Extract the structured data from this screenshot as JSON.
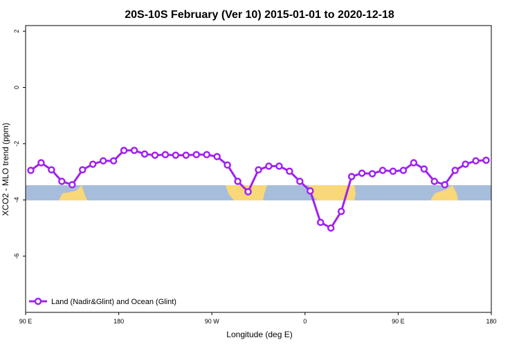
{
  "chart_data": {
    "type": "line",
    "title": "20S-10S February (Ver 10)   2015-01-01 to 2020-12-18",
    "x_label": "Longitude (deg E)",
    "y_label": "XCO2 - MLO trend (ppm)",
    "x": [
      95,
      105,
      115,
      125,
      135,
      145,
      155,
      165,
      175,
      185,
      195,
      205,
      215,
      225,
      235,
      245,
      255,
      265,
      275,
      285,
      295,
      305,
      315,
      325,
      335,
      345,
      355,
      365,
      375,
      385,
      395,
      405,
      415,
      425,
      435,
      445,
      455,
      465,
      475,
      485,
      495,
      505,
      515,
      525,
      535
    ],
    "series": [
      {
        "name": "Land (Nadir&Glint) and Ocean (Glint)",
        "color": "#a020f0",
        "values": [
          -2.95,
          -2.68,
          -2.93,
          -3.34,
          -3.46,
          -2.93,
          -2.73,
          -2.61,
          -2.61,
          -2.24,
          -2.24,
          -2.37,
          -2.41,
          -2.39,
          -2.41,
          -2.41,
          -2.39,
          -2.39,
          -2.46,
          -2.76,
          -3.34,
          -3.71,
          -2.93,
          -2.8,
          -2.8,
          -2.98,
          -3.34,
          -3.68,
          -4.8,
          -5.0,
          -4.41,
          -3.17,
          -3.05,
          -3.07,
          -2.95,
          -2.98,
          -2.95,
          -2.68,
          -2.9,
          -3.34,
          -3.46,
          -2.95,
          -2.73,
          -2.61,
          -2.59
        ]
      }
    ],
    "xlim": [
      90,
      540
    ],
    "xticks": [
      {
        "value": 90,
        "label": "90 E"
      },
      180,
      {
        "value": 270,
        "label": "90 W"
      },
      {
        "value": 360,
        "label": "0"
      },
      {
        "value": 450,
        "label": "90 E"
      },
      {
        "value": 540,
        "label": "180"
      }
    ],
    "ylim": [
      -8,
      2.2
    ],
    "yticks": [
      2,
      0,
      -2,
      -4,
      -6
    ],
    "legend": "bottom-left"
  }
}
